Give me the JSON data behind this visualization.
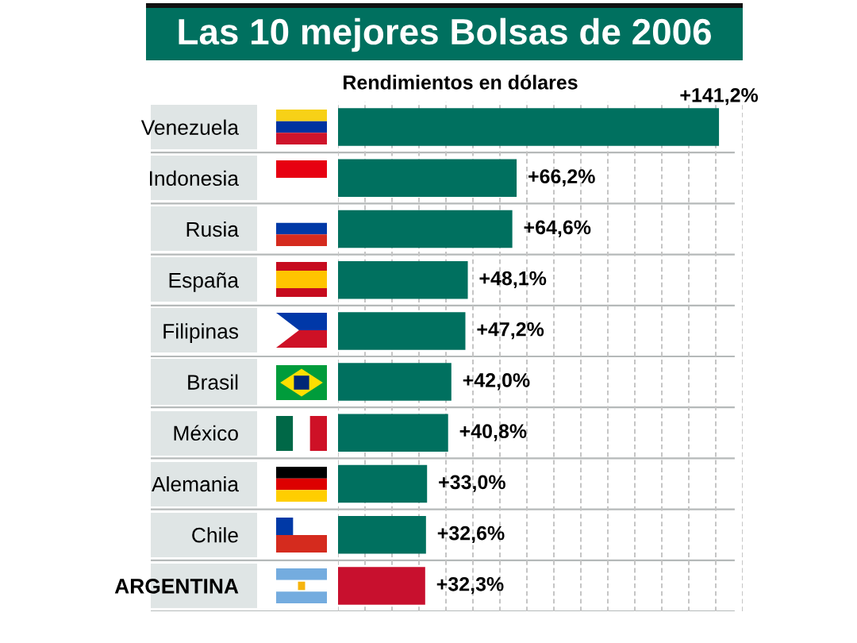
{
  "chart_data": {
    "type": "bar",
    "orientation": "horizontal",
    "title": "Las 10 mejores Bolsas de 2006",
    "subtitle": "Rendimientos en dólares",
    "categories": [
      "Venezuela",
      "Indonesia",
      "Rusia",
      "España",
      "Filipinas",
      "Brasil",
      "México",
      "Alemania",
      "Chile",
      "ARGENTINA"
    ],
    "values": [
      141.2,
      66.2,
      64.6,
      48.1,
      47.2,
      42.0,
      40.8,
      33.0,
      32.6,
      32.3
    ],
    "colors": [
      "#00705f",
      "#00705f",
      "#00705f",
      "#00705f",
      "#00705f",
      "#00705f",
      "#00705f",
      "#00705f",
      "#00705f",
      "#c8102e"
    ],
    "value_labels": [
      "+141,2%",
      "+66,2%",
      "+64,6%",
      "+48,1%",
      "+47,2%",
      "+42,0%",
      "+40,8%",
      "+33,0%",
      "+32,6%",
      "+32,3%"
    ],
    "xticks": [
      {
        "value": 0,
        "label": null
      },
      {
        "value": 10,
        "label": null
      },
      {
        "value": 20,
        "label": null
      },
      {
        "value": 30,
        "label": null
      },
      {
        "value": 40,
        "label": null
      },
      {
        "value": 50,
        "label": null
      },
      {
        "value": 60,
        "label": null
      },
      {
        "value": 70,
        "label": null
      },
      {
        "value": 80,
        "label": null
      },
      {
        "value": 90,
        "label": null
      },
      {
        "value": 100,
        "label": null
      },
      {
        "value": 110,
        "label": null
      },
      {
        "value": 120,
        "label": null
      },
      {
        "value": 130,
        "label": null
      },
      {
        "value": 140,
        "label": null
      },
      {
        "value": 150,
        "label": null
      }
    ],
    "grid": "x",
    "legend": false,
    "tick_labels": "y"
  }
}
